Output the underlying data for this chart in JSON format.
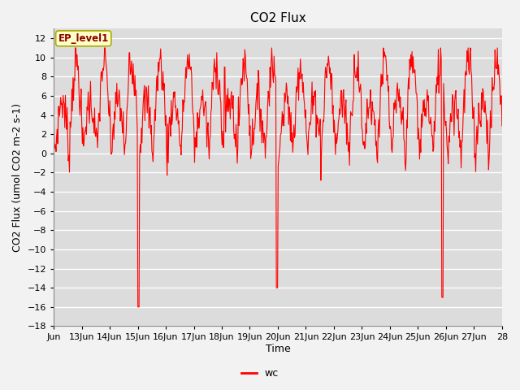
{
  "title": "CO2 Flux",
  "xlabel": "Time",
  "ylabel": "CO2 Flux (umol CO2 m-2 s-1)",
  "line_color": "#FF0000",
  "line_width": 0.8,
  "ylim": [
    -18,
    13
  ],
  "yticks": [
    -18,
    -16,
    -14,
    -12,
    -10,
    -8,
    -6,
    -4,
    -2,
    0,
    2,
    4,
    6,
    8,
    10,
    12
  ],
  "xlim_start": 0,
  "xlim_end": 16,
  "xtick_labels": [
    "Jun",
    "13Jun",
    "14Jun",
    "15Jun",
    "16Jun",
    "17Jun",
    "18Jun",
    "19Jun",
    "20Jun",
    "21Jun",
    "22Jun",
    "23Jun",
    "24Jun",
    "25Jun",
    "26Jun",
    "27Jun",
    "28"
  ],
  "legend_label": "wc",
  "annotation_text": "EP_level1",
  "annotation_bg": "#FFFFC8",
  "annotation_border": "#AAAA00",
  "plot_bg_color": "#DCDCDC",
  "grid_color": "#FFFFFF",
  "title_fontsize": 11,
  "axis_label_fontsize": 9,
  "tick_fontsize": 8
}
